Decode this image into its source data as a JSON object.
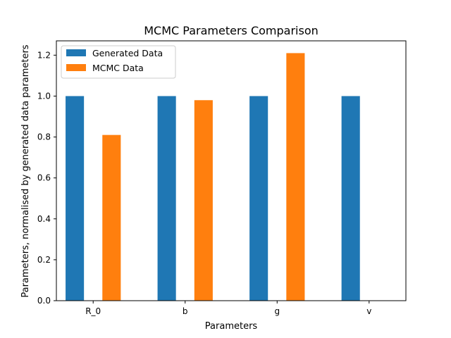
{
  "chart_data": {
    "type": "bar",
    "title": "MCMC Parameters Comparison",
    "xlabel": "Parameters",
    "ylabel": "Parameters, normalised by generated data parameters",
    "categories": [
      "R_0",
      "b",
      "g",
      "v"
    ],
    "series": [
      {
        "name": "Generated Data",
        "color": "#1f77b4",
        "values": [
          1.0,
          1.0,
          1.0,
          1.0
        ]
      },
      {
        "name": "MCMC Data",
        "color": "#ff7f0e",
        "values": [
          0.81,
          0.98,
          1.21,
          0.0
        ]
      }
    ],
    "ylim": [
      0,
      1.27
    ],
    "yticks": [
      "0.0",
      "0.2",
      "0.4",
      "0.6",
      "0.8",
      "1.0",
      "1.2"
    ],
    "grid": false,
    "legend_position": "top-left"
  }
}
